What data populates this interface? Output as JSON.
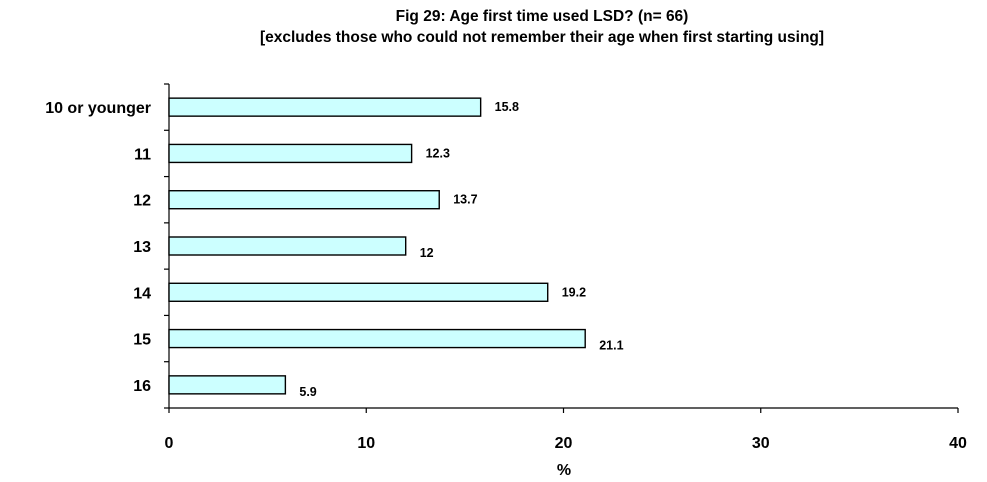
{
  "chart_data": {
    "type": "bar",
    "orientation": "horizontal",
    "title": "Fig 29:   Age first time used LSD?  (n= 66)",
    "subtitle": "[excludes those who could not remember their age when first starting using]",
    "categories": [
      "10 or younger",
      "11",
      "12",
      "13",
      "14",
      "15",
      "16"
    ],
    "values": [
      15.8,
      12.3,
      13.7,
      12,
      19.2,
      21.1,
      5.9
    ],
    "data_labels": [
      "15.8",
      "12.3",
      "13.7",
      "12",
      "19.2",
      "21.1",
      "5.9"
    ],
    "xlabel": "%",
    "ylabel": "",
    "xlim": [
      0,
      40
    ],
    "x_ticks": [
      "0",
      "10",
      "20",
      "30",
      "40"
    ],
    "grid": false,
    "legend": "none",
    "colors": {
      "bar_fill": "#ccffff",
      "bar_stroke": "#000000"
    }
  }
}
